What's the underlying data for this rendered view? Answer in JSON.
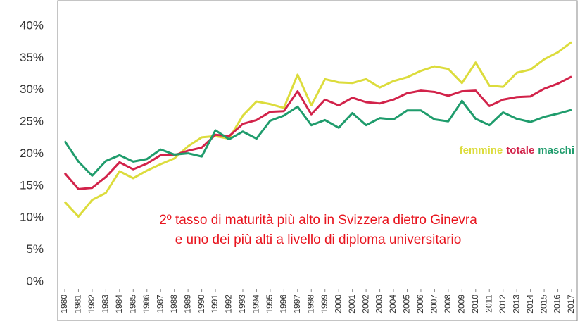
{
  "chart_data": {
    "type": "line",
    "categories": [
      "1980",
      "1981",
      "1982",
      "1983",
      "1984",
      "1985",
      "1986",
      "1987",
      "1988",
      "1989",
      "1990",
      "1991",
      "1992",
      "1993",
      "1994",
      "1995",
      "1996",
      "1997",
      "1998",
      "1999",
      "2000",
      "2001",
      "2002",
      "2003",
      "2004",
      "2005",
      "2006",
      "2007",
      "2008",
      "2009",
      "2010",
      "2011",
      "2012",
      "2013",
      "2014",
      "2015",
      "2016",
      "2017"
    ],
    "series": [
      {
        "name": "femmine",
        "color": "#dcdc3c",
        "values": [
          12.5,
          10.2,
          12.8,
          13.9,
          17.3,
          16.2,
          17.4,
          18.4,
          19.3,
          21.2,
          22.6,
          22.8,
          22.4,
          26.0,
          28.2,
          27.8,
          27.2,
          32.4,
          27.6,
          31.7,
          31.2,
          31.1,
          31.7,
          30.4,
          31.4,
          32.0,
          33.0,
          33.7,
          33.3,
          31.1,
          34.3,
          30.7,
          30.5,
          32.7,
          33.2,
          34.8,
          35.9,
          37.5
        ]
      },
      {
        "name": "totale",
        "color": "#d2234a",
        "values": [
          17.0,
          14.5,
          14.7,
          16.4,
          18.7,
          17.6,
          18.5,
          19.8,
          19.8,
          20.5,
          21.0,
          23.0,
          22.8,
          24.7,
          25.3,
          26.6,
          26.7,
          29.8,
          26.2,
          28.5,
          27.6,
          28.8,
          28.1,
          27.9,
          28.5,
          29.5,
          29.9,
          29.7,
          29.1,
          29.8,
          29.9,
          27.5,
          28.5,
          28.9,
          29.0,
          30.2,
          31.0,
          32.1
        ]
      },
      {
        "name": "maschi",
        "color": "#1f9c6c",
        "values": [
          22.0,
          18.8,
          16.6,
          18.9,
          19.8,
          18.8,
          19.2,
          20.7,
          19.9,
          20.1,
          19.6,
          23.7,
          22.3,
          23.5,
          22.4,
          25.2,
          26.0,
          27.4,
          24.5,
          25.3,
          24.1,
          26.4,
          24.5,
          25.6,
          25.4,
          26.8,
          26.8,
          25.4,
          25.1,
          28.3,
          25.5,
          24.5,
          26.5,
          25.5,
          25.0,
          25.8,
          26.3,
          26.9
        ]
      }
    ],
    "ylim": [
      0,
      40
    ],
    "yticks": [
      {
        "value": 0,
        "label": "0%"
      },
      {
        "value": 5,
        "label": "5%"
      },
      {
        "value": 10,
        "label": "10%"
      },
      {
        "value": 15,
        "label": "15%"
      },
      {
        "value": 20,
        "label": "20%"
      },
      {
        "value": 25,
        "label": "25%"
      },
      {
        "value": 30,
        "label": "30%"
      },
      {
        "value": 35,
        "label": "35%"
      },
      {
        "value": 40,
        "label": "40%"
      }
    ],
    "annotations": [
      "2º tasso di maturità più alto in Svizzera dietro Ginevra",
      "e uno dei più alti a livello di diploma universitario"
    ],
    "grid": false
  }
}
